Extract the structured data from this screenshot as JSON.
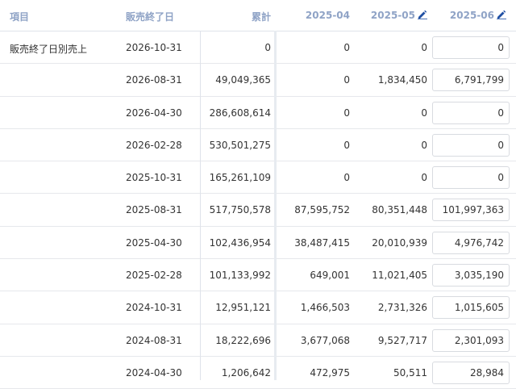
{
  "header": {
    "item": "項目",
    "end_date": "販売終了日",
    "total": "累計",
    "m04": "2025-04",
    "m05": "2025-05",
    "m06": "2025-06",
    "edit_icon": "pencil-icon",
    "header_color": "#8fa3c6"
  },
  "rows": [
    {
      "item": "販売終了日別売上",
      "date": "2026-10-31",
      "total": "0",
      "m04": "0",
      "m05": "0",
      "m06": "0"
    },
    {
      "item": "",
      "date": "2026-08-31",
      "total": "49,049,365",
      "m04": "0",
      "m05": "1,834,450",
      "m06": "6,791,799"
    },
    {
      "item": "",
      "date": "2026-04-30",
      "total": "286,608,614",
      "m04": "0",
      "m05": "0",
      "m06": "0"
    },
    {
      "item": "",
      "date": "2026-02-28",
      "total": "530,501,275",
      "m04": "0",
      "m05": "0",
      "m06": "0"
    },
    {
      "item": "",
      "date": "2025-10-31",
      "total": "165,261,109",
      "m04": "0",
      "m05": "0",
      "m06": "0"
    },
    {
      "item": "",
      "date": "2025-08-31",
      "total": "517,750,578",
      "m04": "87,595,752",
      "m05": "80,351,448",
      "m06": "101,997,363"
    },
    {
      "item": "",
      "date": "2025-04-30",
      "total": "102,436,954",
      "m04": "38,487,415",
      "m05": "20,010,939",
      "m06": "4,976,742"
    },
    {
      "item": "",
      "date": "2025-02-28",
      "total": "101,133,992",
      "m04": "649,001",
      "m05": "11,021,405",
      "m06": "3,035,190"
    },
    {
      "item": "",
      "date": "2024-10-31",
      "total": "12,951,121",
      "m04": "1,466,503",
      "m05": "2,731,326",
      "m06": "1,015,605"
    },
    {
      "item": "",
      "date": "2024-08-31",
      "total": "18,222,696",
      "m04": "3,677,068",
      "m05": "9,527,717",
      "m06": "2,301,093"
    },
    {
      "item": "",
      "date": "2024-04-30",
      "total": "1,206,642",
      "m04": "472,975",
      "m05": "50,511",
      "m06": "28,984"
    }
  ]
}
